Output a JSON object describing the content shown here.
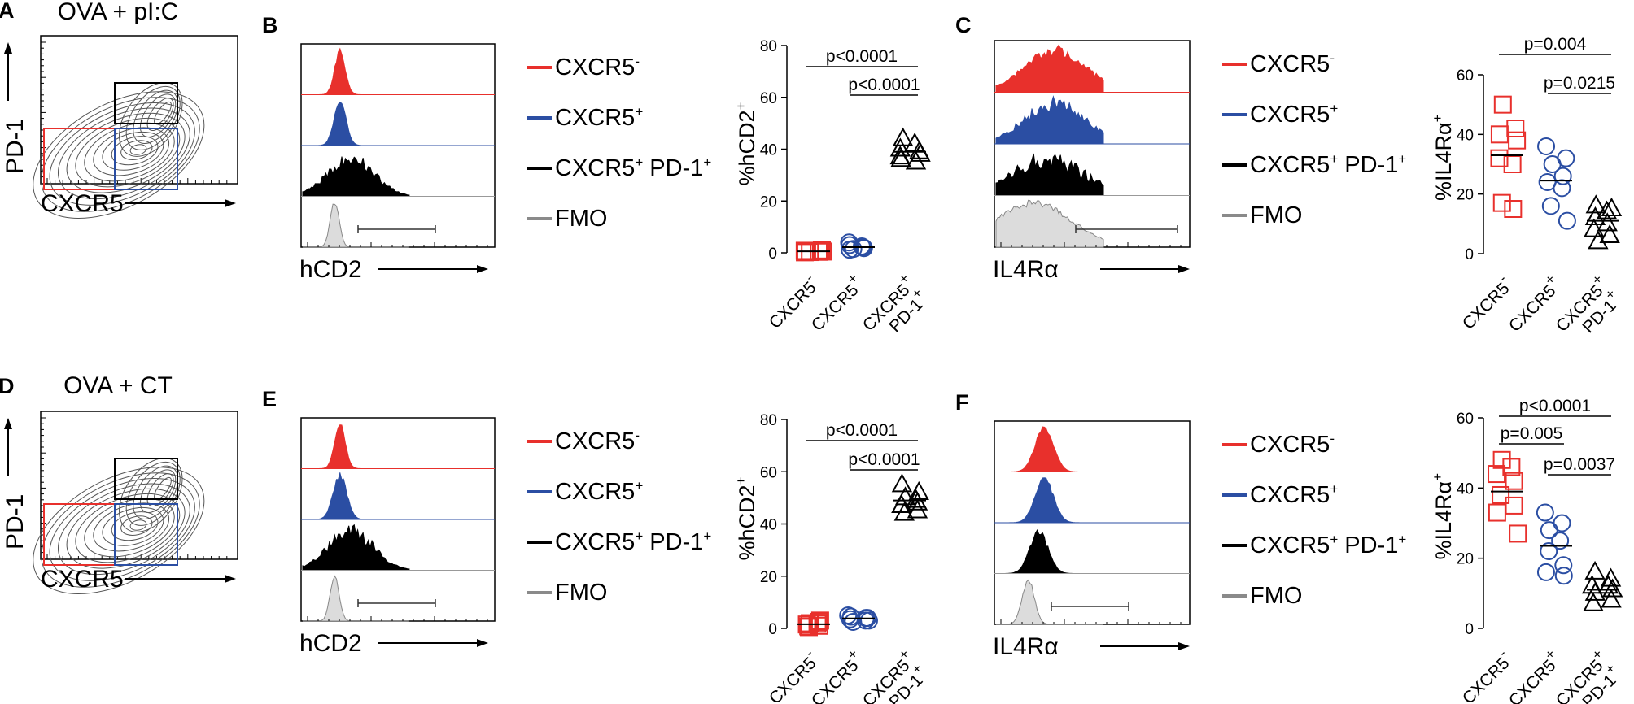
{
  "figure": {
    "panels": {
      "A": {
        "letter": "A",
        "title": "OVA + pI:C",
        "ylabel": "PD-1",
        "xlabel": "CXCR5"
      },
      "B": {
        "letter": "B",
        "xlabel": "hCD2"
      },
      "C": {
        "letter": "C",
        "xlabel": "IL4Rα"
      },
      "D": {
        "letter": "D",
        "title": "OVA + CT",
        "ylabel": "PD-1",
        "xlabel": "CXCR5"
      },
      "E": {
        "letter": "E",
        "xlabel": "hCD2"
      },
      "F": {
        "letter": "F",
        "xlabel": "IL4Rα"
      }
    },
    "legend": [
      {
        "base": "CXCR5",
        "sup": "-",
        "tail": "",
        "supTail": "",
        "color": "#e8302c"
      },
      {
        "base": "CXCR5",
        "sup": "+",
        "tail": "",
        "supTail": "",
        "color": "#2b4ea3"
      },
      {
        "base": "CXCR5",
        "sup": "+",
        "tail": " PD-1",
        "supTail": "+",
        "color": "#000000"
      },
      {
        "base": "FMO",
        "sup": "",
        "tail": "",
        "supTail": "",
        "color": "#8a8a8a"
      }
    ],
    "categories": [
      {
        "line1": "CXCR5",
        "sup1": "-",
        "line2": "",
        "sup2": ""
      },
      {
        "line1": "CXCR5",
        "sup1": "+",
        "line2": "",
        "sup2": ""
      },
      {
        "line1": "CXCR5",
        "sup1": "+",
        "line2": "PD-1",
        "sup2": "+"
      }
    ],
    "colors": {
      "red": "#e8302c",
      "blue": "#2b4ea3",
      "black": "#000000",
      "gray": "#8a8a8a",
      "fill_gray": "#dcdcdc"
    }
  },
  "chart_data": [
    {
      "panel": "B",
      "type": "scatter",
      "ylabel": "%hCD2",
      "ylabel_sup": "+",
      "ylim": [
        0,
        80
      ],
      "yticks": [
        "0",
        "20",
        "40",
        "60",
        "80"
      ],
      "categories": [
        "CXCR5-",
        "CXCR5+",
        "CXCR5+ PD-1+"
      ],
      "markers": [
        "square",
        "circle",
        "triangle"
      ],
      "series": [
        {
          "name": "CXCR5-",
          "values": [
            0.3,
            0.5,
            0.8,
            1.0,
            0.6,
            0.4,
            0.2,
            0.7
          ],
          "mean": 0.6
        },
        {
          "name": "CXCR5+",
          "values": [
            4,
            2.5,
            1.5,
            2,
            3,
            1.8,
            1.2,
            2.2
          ],
          "mean": 2.2
        },
        {
          "name": "CXCR5+ PD-1+",
          "values": [
            44,
            42,
            40,
            38,
            37,
            35,
            36,
            39
          ],
          "mean": 39
        }
      ],
      "pvalues": [
        {
          "label": "p<0.0001",
          "from": 0,
          "to": 2
        },
        {
          "label": "p<0.0001",
          "from": 1,
          "to": 2
        }
      ]
    },
    {
      "panel": "C",
      "type": "scatter",
      "ylabel": "%IL4Rα",
      "ylabel_sup": "+",
      "ylim": [
        0,
        60
      ],
      "yticks": [
        "0",
        "20",
        "40",
        "60"
      ],
      "categories": [
        "CXCR5-",
        "CXCR5+",
        "CXCR5+ PD-1+"
      ],
      "markers": [
        "square",
        "circle",
        "triangle"
      ],
      "series": [
        {
          "name": "CXCR5-",
          "values": [
            50,
            42,
            40,
            38,
            32,
            30,
            17,
            15
          ],
          "mean": 33
        },
        {
          "name": "CXCR5+",
          "values": [
            36,
            32,
            30,
            26,
            24,
            22,
            16,
            11
          ],
          "mean": 24.5
        },
        {
          "name": "CXCR5+ PD-1+",
          "values": [
            16,
            14,
            12,
            10,
            8,
            6,
            4,
            15
          ],
          "mean": 11
        }
      ],
      "pvalues": [
        {
          "label": "p=0.004",
          "from": 0,
          "to": 2
        },
        {
          "label": "p=0.0215",
          "from": 1,
          "to": 2
        }
      ]
    },
    {
      "panel": "E",
      "type": "scatter",
      "ylabel": "%hCD2",
      "ylabel_sup": "+",
      "ylim": [
        0,
        80
      ],
      "yticks": [
        "0",
        "20",
        "40",
        "60",
        "80"
      ],
      "categories": [
        "CXCR5-",
        "CXCR5+",
        "CXCR5+ PD-1+"
      ],
      "markers": [
        "square",
        "circle",
        "triangle"
      ],
      "series": [
        {
          "name": "CXCR5-",
          "values": [
            0.5,
            1,
            2,
            2.5,
            1.5,
            3,
            0.8,
            1.8
          ],
          "mean": 1.6
        },
        {
          "name": "CXCR5+",
          "values": [
            5,
            4,
            3.5,
            3,
            4.5,
            3,
            2.5,
            4
          ],
          "mean": 3.8
        },
        {
          "name": "CXCR5+ PD-1+",
          "values": [
            55,
            52,
            50,
            48,
            47,
            45,
            44,
            49
          ],
          "mean": 49
        }
      ],
      "pvalues": [
        {
          "label": "p<0.0001",
          "from": 0,
          "to": 2
        },
        {
          "label": "p<0.0001",
          "from": 1,
          "to": 2
        }
      ]
    },
    {
      "panel": "F",
      "type": "scatter",
      "ylabel": "%IL4Rα",
      "ylabel_sup": "+",
      "ylim": [
        0,
        60
      ],
      "yticks": [
        "0",
        "20",
        "40",
        "60"
      ],
      "categories": [
        "CXCR5-",
        "CXCR5+",
        "CXCR5+ PD-1+"
      ],
      "markers": [
        "square",
        "circle",
        "triangle"
      ],
      "series": [
        {
          "name": "CXCR5-",
          "values": [
            48,
            46,
            44,
            42,
            38,
            35,
            33,
            27
          ],
          "mean": 39
        },
        {
          "name": "CXCR5+",
          "values": [
            33,
            30,
            28,
            25,
            22,
            18,
            16,
            15
          ],
          "mean": 23.5
        },
        {
          "name": "CXCR5+ PD-1+",
          "values": [
            16,
            14,
            12,
            11,
            10,
            8,
            7,
            12
          ],
          "mean": 11
        }
      ],
      "pvalues": [
        {
          "label": "p<0.0001",
          "from": 0,
          "to": 2
        },
        {
          "label": "p=0.005",
          "from": 0,
          "to": 1
        },
        {
          "label": "p=0.0037",
          "from": 1,
          "to": 2
        }
      ]
    }
  ]
}
